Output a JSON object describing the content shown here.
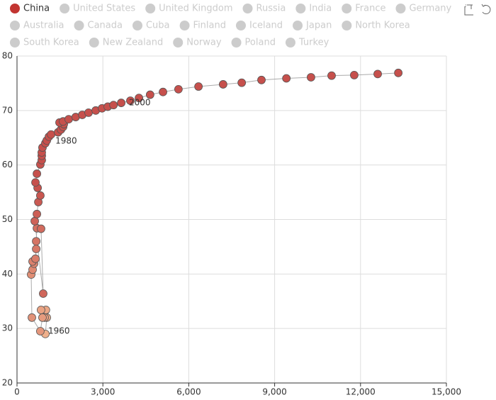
{
  "chart_data": {
    "type": "scatter",
    "series": [
      {
        "name": "China",
        "color": "#c23531",
        "point_colors": [
          "#efb08c",
          "#c6504c"
        ],
        "x": [
          990,
          1040,
          1010,
          840,
          965,
          890,
          815,
          520,
          495,
          545,
          595,
          545,
          645,
          670,
          670,
          695,
          840,
          915,
          620,
          695,
          745,
          815,
          720,
          645,
          695,
          815,
          865,
          865,
          865,
          890,
          990,
          1040,
          1115,
          1190,
          1435,
          1535,
          1610,
          1635,
          1485,
          1610,
          1805,
          2050,
          2280,
          2500,
          2750,
          2970,
          3170,
          3370,
          3640,
          3960,
          4260,
          4650,
          5100,
          5640,
          6340,
          7200,
          7850,
          8540,
          9410,
          10270,
          10990,
          11780,
          12600,
          13320
        ],
        "values": [
          29.0,
          32.0,
          33.4,
          33.4,
          32.0,
          32.0,
          29.5,
          32.0,
          39.9,
          40.8,
          41.9,
          42.3,
          42.8,
          44.6,
          46.0,
          48.4,
          48.3,
          36.4,
          49.7,
          51.0,
          53.2,
          54.4,
          55.8,
          56.8,
          58.4,
          60.1,
          60.9,
          61.7,
          62.3,
          63.2,
          64.0,
          64.5,
          65.2,
          65.6,
          66.0,
          66.5,
          67.0,
          67.5,
          67.8,
          68.0,
          68.4,
          68.8,
          69.2,
          69.6,
          70.0,
          70.4,
          70.7,
          71.0,
          71.4,
          71.8,
          72.3,
          72.9,
          73.4,
          73.9,
          74.4,
          74.8,
          75.1,
          75.6,
          75.9,
          76.1,
          76.4,
          76.5,
          76.7,
          76.9
        ]
      }
    ],
    "legend_others": [
      "United States",
      "United Kingdom",
      "Russia",
      "India",
      "France",
      "Germany",
      "Australia",
      "Canada",
      "Cuba",
      "Finland",
      "Iceland",
      "Japan",
      "North Korea",
      "South Korea",
      "New Zealand",
      "Norway",
      "Poland",
      "Turkey"
    ],
    "legend_inactive_color": "#ccc",
    "annotations": [
      {
        "text": "1960",
        "x": 1090,
        "y": 29.5
      },
      {
        "text": "1980",
        "x": 1340,
        "y": 64.4
      },
      {
        "text": "2000",
        "x": 3910,
        "y": 71.4
      }
    ],
    "xlim": [
      0,
      15000
    ],
    "xticks": [
      0,
      {
        "value": 3000,
        "label": "3,000"
      },
      {
        "value": 6000,
        "label": "6,000"
      },
      {
        "value": 9000,
        "label": "9,000"
      },
      {
        "value": 12000,
        "label": "12,000"
      },
      {
        "value": 15000,
        "label": "15,000"
      }
    ],
    "ylim": [
      20,
      80
    ],
    "yticks": [
      20,
      30,
      40,
      50,
      60,
      70,
      80
    ],
    "grid": true
  }
}
